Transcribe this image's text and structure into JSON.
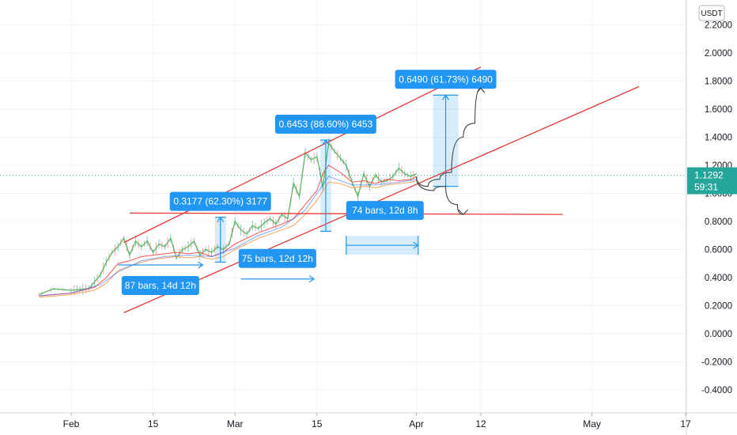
{
  "chart_data": {
    "type": "line",
    "y_axis": {
      "position": "right",
      "range": [
        -0.5,
        2.3
      ],
      "ticks": [
        "2.2000",
        "2.0000",
        "1.8000",
        "1.6000",
        "1.4000",
        "1.2000",
        "1.0000",
        "0.8000",
        "0.6000",
        "0.4000",
        "0.2000",
        "0.0000",
        "-0.2000",
        "-0.4000"
      ],
      "tick_values": [
        2.2,
        2.0,
        1.8,
        1.6,
        1.4,
        1.2,
        1.0,
        0.8,
        0.6,
        0.4,
        0.2,
        0.0,
        -0.2,
        -0.4
      ]
    },
    "x_axis": {
      "range_days": [
        -5.5,
        102
      ],
      "ticks": [
        {
          "label": "Feb",
          "day": 0
        },
        {
          "label": "15",
          "day": 14
        },
        {
          "label": "Mar",
          "day": 28
        },
        {
          "label": "15",
          "day": 42
        },
        {
          "label": "Apr",
          "day": 59
        },
        {
          "label": "12",
          "day": 70
        },
        {
          "label": "May",
          "day": 89
        },
        {
          "label": "17",
          "day": 105
        }
      ]
    },
    "currency": "USDT",
    "current_price": {
      "value": 1.1292,
      "label": "1.1292",
      "countdown": "59:31",
      "color": "#26a69a"
    },
    "series": [
      {
        "color": "#4caf50",
        "points": [
          [
            -5.5,
            0.28
          ],
          [
            -3,
            0.32
          ],
          [
            0,
            0.31
          ],
          [
            3,
            0.32
          ],
          [
            5,
            0.42
          ],
          [
            6,
            0.51
          ],
          [
            7,
            0.58
          ],
          [
            8,
            0.62
          ],
          [
            9,
            0.68
          ],
          [
            10,
            0.56
          ],
          [
            11,
            0.66
          ],
          [
            12,
            0.62
          ],
          [
            13,
            0.66
          ],
          [
            14,
            0.58
          ],
          [
            15,
            0.64
          ],
          [
            16,
            0.62
          ],
          [
            17,
            0.68
          ],
          [
            18,
            0.54
          ],
          [
            19,
            0.6
          ],
          [
            20,
            0.62
          ],
          [
            21,
            0.66
          ],
          [
            22,
            0.56
          ],
          [
            23,
            0.6
          ],
          [
            24,
            0.58
          ],
          [
            25,
            0.62
          ],
          [
            26,
            0.6
          ],
          [
            27,
            0.64
          ],
          [
            28,
            0.8
          ],
          [
            29,
            0.74
          ],
          [
            30,
            0.71
          ],
          [
            31,
            0.77
          ],
          [
            32,
            0.75
          ],
          [
            33,
            0.79
          ],
          [
            34,
            0.82
          ],
          [
            35,
            0.78
          ],
          [
            36,
            0.85
          ],
          [
            37,
            0.82
          ],
          [
            38,
            1.07
          ],
          [
            39,
            0.98
          ],
          [
            40,
            1.29
          ],
          [
            41,
            1.24
          ],
          [
            42,
            1.26
          ],
          [
            42.5,
            1.16
          ],
          [
            43,
            1.04
          ],
          [
            44,
            1.36
          ],
          [
            45,
            1.3
          ],
          [
            46,
            1.25
          ],
          [
            47,
            1.2
          ],
          [
            48,
            1.08
          ],
          [
            49,
            0.98
          ],
          [
            50,
            1.14
          ],
          [
            51,
            1.05
          ],
          [
            52,
            1.13
          ],
          [
            53,
            1.08
          ],
          [
            54,
            1.09
          ],
          [
            55,
            1.12
          ],
          [
            56,
            1.18
          ],
          [
            57,
            1.14
          ],
          [
            58,
            1.12
          ],
          [
            59,
            1.14
          ]
        ]
      },
      {
        "color": "#ef5350",
        "points": [
          [
            -5.5,
            0.27
          ],
          [
            0,
            0.29
          ],
          [
            4,
            0.33
          ],
          [
            6,
            0.4
          ],
          [
            8,
            0.5
          ],
          [
            10,
            0.52
          ],
          [
            12,
            0.55
          ],
          [
            14,
            0.56
          ],
          [
            16,
            0.57
          ],
          [
            18,
            0.58
          ],
          [
            20,
            0.57
          ],
          [
            22,
            0.58
          ],
          [
            24,
            0.55
          ],
          [
            26,
            0.58
          ],
          [
            28,
            0.64
          ],
          [
            30,
            0.68
          ],
          [
            32,
            0.72
          ],
          [
            34,
            0.75
          ],
          [
            36,
            0.78
          ],
          [
            38,
            0.82
          ],
          [
            40,
            0.92
          ],
          [
            42,
            1.02
          ],
          [
            43,
            1.14
          ],
          [
            44,
            1.2
          ],
          [
            46,
            1.15
          ],
          [
            48,
            1.08
          ],
          [
            50,
            1.09
          ],
          [
            52,
            1.07
          ],
          [
            54,
            1.1
          ],
          [
            56,
            1.09
          ],
          [
            58,
            1.1
          ],
          [
            59,
            1.12
          ]
        ]
      },
      {
        "color": "#f5a25a",
        "points": [
          [
            -5.5,
            0.26
          ],
          [
            0,
            0.28
          ],
          [
            4,
            0.31
          ],
          [
            6,
            0.36
          ],
          [
            8,
            0.45
          ],
          [
            10,
            0.48
          ],
          [
            12,
            0.51
          ],
          [
            14,
            0.53
          ],
          [
            16,
            0.54
          ],
          [
            18,
            0.55
          ],
          [
            20,
            0.54
          ],
          [
            22,
            0.55
          ],
          [
            24,
            0.53
          ],
          [
            26,
            0.55
          ],
          [
            28,
            0.6
          ],
          [
            30,
            0.64
          ],
          [
            32,
            0.68
          ],
          [
            34,
            0.71
          ],
          [
            36,
            0.74
          ],
          [
            38,
            0.77
          ],
          [
            40,
            0.85
          ],
          [
            42,
            0.95
          ],
          [
            44,
            1.08
          ],
          [
            46,
            1.07
          ],
          [
            48,
            1.04
          ],
          [
            50,
            1.05
          ],
          [
            52,
            1.04
          ],
          [
            54,
            1.06
          ],
          [
            56,
            1.07
          ],
          [
            58,
            1.08
          ],
          [
            59,
            1.09
          ]
        ]
      },
      {
        "color": "#2962ff",
        "points": [
          [
            -5.5,
            0.27
          ],
          [
            0,
            0.29
          ],
          [
            5,
            0.35
          ],
          [
            8,
            0.44
          ],
          [
            12,
            0.52
          ],
          [
            16,
            0.55
          ],
          [
            20,
            0.56
          ],
          [
            24,
            0.55
          ],
          [
            28,
            0.61
          ],
          [
            32,
            0.7
          ],
          [
            36,
            0.76
          ],
          [
            40,
            0.88
          ],
          [
            44,
            1.12
          ],
          [
            48,
            1.06
          ],
          [
            52,
            1.06
          ],
          [
            56,
            1.08
          ],
          [
            59,
            1.1
          ]
        ]
      }
    ],
    "annotations": {
      "trend_lines": [
        {
          "from": [
            9,
            0.65
          ],
          "to": [
            70,
            1.9
          ]
        },
        {
          "from": [
            9,
            0.15
          ],
          "to": [
            97,
            1.76
          ]
        },
        {
          "from": [
            10,
            0.86
          ],
          "to": [
            84,
            0.85
          ]
        }
      ],
      "price_ranges": [
        {
          "label": "0.3177 (62.30%) 3177",
          "day": 25.5,
          "from": 0.51,
          "to": 0.83
        },
        {
          "label": "0.6453 (88.60%) 6453",
          "day": 43.5,
          "from": 0.73,
          "to": 1.38
        },
        {
          "label": "0.6490 (61.73%) 6490",
          "day": 64,
          "from": 1.05,
          "to": 1.7
        }
      ],
      "date_ranges": [
        {
          "label": "87 bars, 14d 12h",
          "from_day": 8,
          "to_day": 22.5,
          "y": 0.49
        },
        {
          "label": "75 bars, 12d 12h",
          "from_day": 29,
          "to_day": 41.5,
          "y": 0.39
        },
        {
          "label": "74 bars, 12d 8h",
          "from_day": 47,
          "to_day": 59.3,
          "y": 0.63
        }
      ],
      "projections": [
        {
          "points": [
            [
              59,
              1.12
            ],
            [
              62,
              1.02
            ],
            [
              64,
              1.05
            ],
            [
              66,
              0.92
            ],
            [
              67,
              0.85
            ]
          ]
        },
        {
          "points": [
            [
              59,
              1.12
            ],
            [
              61,
              1.05
            ],
            [
              63,
              1.1
            ],
            [
              65,
              1.15
            ],
            [
              67,
              1.4
            ],
            [
              69,
              1.5
            ],
            [
              70,
              1.75
            ]
          ]
        }
      ]
    }
  }
}
